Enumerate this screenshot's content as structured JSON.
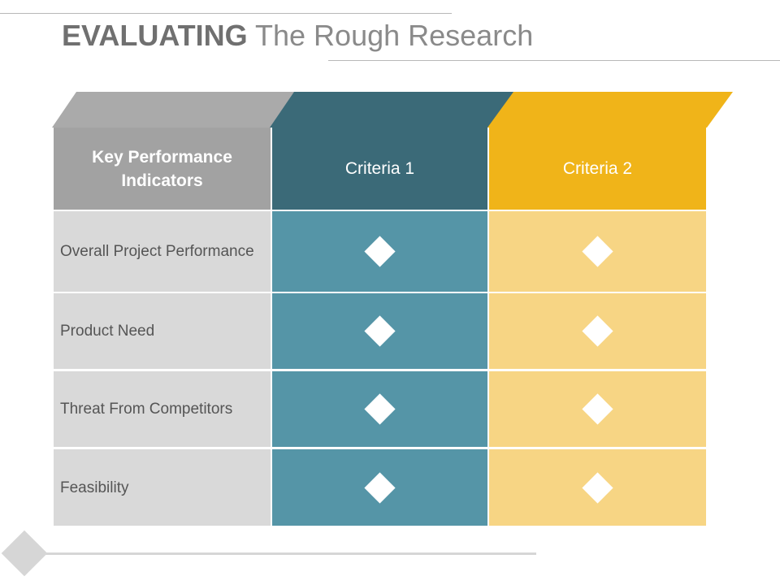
{
  "title": {
    "bold": "EVALUATING",
    "light": "The Rough Research"
  },
  "table": {
    "header": {
      "kpi": "Key Performance Indicators",
      "criteria1": "Criteria 1",
      "criteria2": "Criteria 2"
    },
    "rows": [
      {
        "label": "Overall Project Performance"
      },
      {
        "label": "Product Need"
      },
      {
        "label": "Threat From Competitors"
      },
      {
        "label": "Feasibility"
      }
    ]
  },
  "colors": {
    "kpi_header": "#a2a2a2",
    "criteria1_header": "#3b6a78",
    "criteria1_cells": "#5595a7",
    "criteria2_header": "#f0b419",
    "criteria2_cells": "#f7d584",
    "label_cells": "#d9d9d9"
  },
  "icons": {
    "cell_marker": "white-diamond-icon",
    "footer_marker": "gray-diamond-icon"
  }
}
